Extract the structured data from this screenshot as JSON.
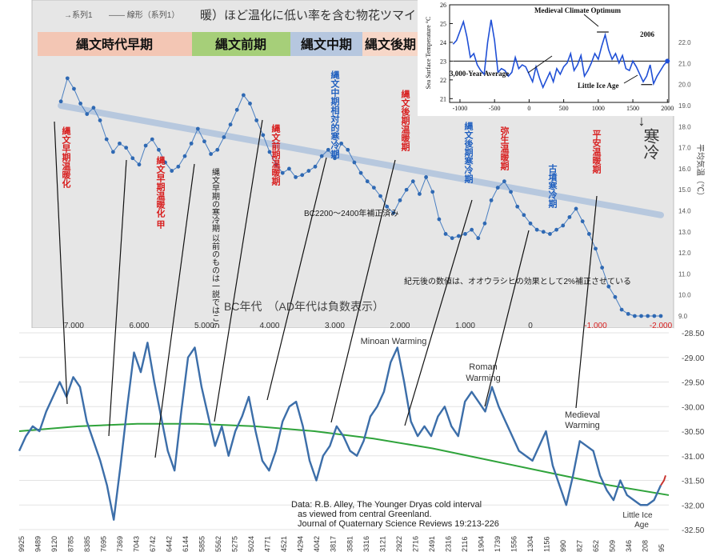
{
  "header_bar": {
    "title": "暖）ほど温化に低い率を含む物花ツマイ",
    "legend": [
      "→系列1",
      "—— 線形（系列1）"
    ],
    "periods": [
      {
        "label": "縄文時代早期",
        "color": "#f3c6b4"
      },
      {
        "label": "縄文前期",
        "color": "#a6cf79"
      },
      {
        "label": "縄文中期",
        "color": "#b6c7df"
      },
      {
        "label": "縄文後期",
        "color": "#f7d7c8"
      }
    ]
  },
  "top_chart": {
    "xlabel": "BC年代　（AD年代は負数表示）",
    "x_ticks": [
      "7,000",
      "6,000",
      "5,000",
      "4,000",
      "3,000",
      "2,000",
      "1,000",
      "0",
      "-1,000",
      "-2,000"
    ],
    "y_ticks_right": [
      "22.0",
      "21.0",
      "20.0",
      "19.0",
      "18.0",
      "17.0",
      "16.0",
      "15.0",
      "14.0",
      "13.0",
      "12.0",
      "11.0",
      "10.0",
      "9.0"
    ],
    "ylabel_right": "平均気温（℃）",
    "cold_label": "寒冷",
    "annotations": [
      {
        "text": "縄文早期温暖化",
        "color": "#d81e1e"
      },
      {
        "text": "縄文早期温暖化 甲",
        "color": "#d81e1e"
      },
      {
        "text": "縄文早期の寒冷期 以前のものは一説ではこの時期の気候変動",
        "color": "#1a1a1a"
      },
      {
        "text": "縄文前期温暖期",
        "color": "#d81e1e"
      },
      {
        "text": "縄文中期相対的寒冷期",
        "color": "#1f5fbf"
      },
      {
        "text": "縄文後期温暖期",
        "color": "#d81e1e"
      },
      {
        "text": "縄文後期寒冷期",
        "color": "#1f5fbf"
      },
      {
        "text": "弥生温暖期",
        "color": "#d81e1e"
      },
      {
        "text": "古墳寒冷期",
        "color": "#1f5fbf"
      },
      {
        "text": "平安温暖期",
        "color": "#d81e1e"
      },
      {
        "text": "BC2200～2400年補正済み",
        "color": "#1a1a1a"
      },
      {
        "text": "紀元後の数値は、オオウラシヒの効果として2%補正させている",
        "color": "#1a1a1a"
      }
    ]
  },
  "inset_chart": {
    "ylabel": "Sea Surface Temperature °C",
    "y_ticks": [
      "26",
      "25",
      "24",
      "23",
      "22",
      "21"
    ],
    "x_ticks": [
      "-1000",
      "-500",
      "0",
      "500",
      "1000",
      "1500",
      "2000"
    ],
    "labels": {
      "optimum": "Medieval Climate Optimum",
      "average": "3,000-Year Average",
      "little_ice_age": "Little Ice Age",
      "year_2006": "2006"
    }
  },
  "bottom_chart": {
    "y_ticks": [
      "-28.50",
      "-29.00",
      "-29.50",
      "-30.00",
      "-30.50",
      "-31.00",
      "-31.50",
      "-32.00",
      "-32.50"
    ],
    "x_ticks": [
      "9925",
      "9489",
      "9120",
      "8785",
      "8385",
      "7695",
      "7369",
      "7043",
      "6742",
      "6442",
      "6144",
      "5855",
      "5562",
      "5275",
      "5024",
      "4771",
      "4521",
      "4294",
      "4042",
      "3817",
      "3581",
      "3316",
      "3121",
      "2922",
      "2716",
      "2491",
      "2316",
      "2116",
      "1904",
      "1739",
      "1556",
      "1304",
      "1156",
      "990",
      "827",
      "652",
      "509",
      "346",
      "208",
      "95"
    ],
    "labels": {
      "minoan": "Minoan Warming",
      "roman_line1": "Roman",
      "roman_line2": "Warming",
      "medieval_line1": "Medieval",
      "medieval_line2": "Warming",
      "lia_line1": "Little Ice",
      "lia_line2": "Age",
      "source_line1": "Data: R.B. Alley,  The Younger Dryas cold interval",
      "source_line2": "as viewed from central Greenland.",
      "source_line3": "Journal of Quaternary  Science Reviews 19:213-226"
    }
  },
  "chart_data": [
    {
      "type": "scatter",
      "title": "",
      "xlabel": "BC年代　（AD年代は負数表示）",
      "ylabel": "平均気温（℃）",
      "xlim": [
        7300,
        -2000
      ],
      "ylim": [
        9,
        22.5
      ],
      "series": [
        {
          "name": "系列1",
          "x": [
            7200,
            7100,
            7000,
            6900,
            6800,
            6700,
            6600,
            6500,
            6400,
            6300,
            6200,
            6100,
            6000,
            5900,
            5800,
            5700,
            5600,
            5500,
            5400,
            5300,
            5200,
            5100,
            5000,
            4900,
            4800,
            4700,
            4600,
            4500,
            4400,
            4300,
            4200,
            4100,
            4000,
            3900,
            3800,
            3700,
            3600,
            3500,
            3400,
            3300,
            3200,
            3100,
            3000,
            2900,
            2800,
            2700,
            2600,
            2500,
            2400,
            2300,
            2200,
            2100,
            2000,
            1900,
            1800,
            1700,
            1600,
            1500,
            1400,
            1300,
            1200,
            1100,
            1000,
            900,
            800,
            700,
            600,
            500,
            400,
            300,
            200,
            100,
            0,
            -100,
            -200,
            -300,
            -400,
            -500,
            -600,
            -700,
            -800,
            -900,
            -1000,
            -1100,
            -1200,
            -1300,
            -1400,
            -1500,
            -1600,
            -1700,
            -1800,
            -1900,
            -2000
          ],
          "values": [
            19.2,
            20.3,
            19.8,
            19.1,
            18.6,
            18.9,
            18.3,
            17.4,
            16.8,
            17.2,
            17.0,
            16.5,
            16.2,
            17.1,
            17.4,
            16.9,
            16.3,
            15.9,
            16.1,
            16.6,
            17.2,
            17.9,
            17.3,
            16.7,
            16.9,
            17.5,
            18.1,
            18.8,
            19.5,
            19.1,
            18.3,
            17.6,
            16.8,
            16.2,
            15.8,
            16.0,
            15.6,
            15.7,
            15.9,
            16.1,
            16.6,
            16.9,
            16.5,
            17.2,
            16.9,
            16.3,
            15.8,
            15.4,
            15.1,
            14.7,
            14.2,
            13.9,
            14.5,
            15.0,
            15.4,
            14.8,
            15.6,
            14.9,
            13.6,
            12.9,
            12.7,
            12.8,
            12.9,
            13.1,
            12.7,
            13.4,
            14.5,
            15.1,
            15.4,
            14.9,
            14.2,
            13.8,
            13.4,
            13.1,
            13.0,
            12.9,
            13.1,
            13.3,
            13.7,
            14.1,
            13.5,
            12.9,
            12.2,
            11.3,
            10.4,
            9.9,
            9.3,
            9.1,
            9.0,
            9.0,
            9.0,
            9.0,
            9.0
          ]
        },
        {
          "name": "線形（系列1）",
          "x": [
            7200,
            -2000
          ],
          "values": [
            19.0,
            13.8
          ]
        }
      ]
    },
    {
      "type": "line",
      "title": "",
      "xlabel": "",
      "ylabel": "Sea Surface Temperature °C",
      "xlim": [
        -1150,
        2020
      ],
      "ylim": [
        20.8,
        26
      ],
      "series": [
        {
          "name": "",
          "x": [
            -1100,
            -1050,
            -1000,
            -950,
            -900,
            -850,
            -800,
            -750,
            -700,
            -650,
            -600,
            -550,
            -500,
            -450,
            -400,
            -350,
            -300,
            -250,
            -200,
            -150,
            -100,
            -50,
            0,
            50,
            100,
            150,
            200,
            250,
            300,
            350,
            400,
            450,
            500,
            550,
            600,
            650,
            700,
            750,
            800,
            850,
            900,
            950,
            1000,
            1050,
            1100,
            1150,
            1200,
            1250,
            1300,
            1350,
            1400,
            1450,
            1500,
            1550,
            1600,
            1650,
            1700,
            1750,
            1800,
            1850,
            1900,
            1950,
            2000
          ],
          "values": [
            23.9,
            24.1,
            24.6,
            25.1,
            24.3,
            23.2,
            23.4,
            22.8,
            22.5,
            22.3,
            24.0,
            25.2,
            24.1,
            22.4,
            22.6,
            22.5,
            22.2,
            22.4,
            23.2,
            22.6,
            22.8,
            22.7,
            22.3,
            21.9,
            22.7,
            22.1,
            21.6,
            22.0,
            22.4,
            21.9,
            22.6,
            22.3,
            22.7,
            22.9,
            23.4,
            22.5,
            22.8,
            23.3,
            22.2,
            22.5,
            22.9,
            23.4,
            23.1,
            23.8,
            24.4,
            23.6,
            23.1,
            23.4,
            22.9,
            23.3,
            22.6,
            22.5,
            23.0,
            22.7,
            22.3,
            21.9,
            22.2,
            22.8,
            21.8,
            22.2,
            22.5,
            22.8,
            23.0
          ]
        },
        {
          "name": "3,000-Year Average",
          "x": [
            -1100,
            2000
          ],
          "values": [
            23.0,
            23.0
          ]
        }
      ]
    },
    {
      "type": "line",
      "title": "",
      "xlabel": "",
      "ylabel": "",
      "ylim": [
        -32.5,
        -28.5
      ],
      "series": [
        {
          "name": "",
          "values": [
            -30.9,
            -30.6,
            -30.4,
            -30.5,
            -30.1,
            -29.8,
            -29.5,
            -29.8,
            -29.4,
            -29.6,
            -30.3,
            -30.7,
            -31.1,
            -31.6,
            -32.3,
            -31.2,
            -30.0,
            -28.9,
            -29.3,
            -28.7,
            -29.5,
            -30.2,
            -30.9,
            -31.3,
            -30.1,
            -29.0,
            -28.8,
            -29.6,
            -30.2,
            -30.8,
            -30.4,
            -31.0,
            -30.5,
            -30.2,
            -29.8,
            -30.5,
            -31.1,
            -31.3,
            -30.9,
            -30.3,
            -30.0,
            -29.9,
            -30.4,
            -31.1,
            -31.5,
            -31.0,
            -30.8,
            -30.4,
            -30.6,
            -30.9,
            -31.0,
            -30.7,
            -30.2,
            -30.0,
            -29.7,
            -29.1,
            -28.8,
            -29.5,
            -30.3,
            -30.6,
            -30.4,
            -30.6,
            -30.2,
            -30.0,
            -30.4,
            -30.6,
            -29.9,
            -29.7,
            -29.9,
            -30.1,
            -29.6,
            -30.0,
            -30.3,
            -30.6,
            -30.9,
            -31.0,
            -31.1,
            -30.8,
            -30.5,
            -31.2,
            -31.6,
            -32.0,
            -31.4,
            -30.7,
            -30.8,
            -30.9,
            -31.4,
            -31.7,
            -31.9,
            -31.5,
            -31.8,
            -31.9,
            -32.0,
            -32.0,
            -31.9,
            -31.6
          ]
        },
        {
          "name": "",
          "values": [
            -30.5,
            -30.4,
            -30.35,
            -30.35,
            -30.4,
            -30.5,
            -30.65,
            -30.85,
            -31.1,
            -31.35,
            -31.6,
            -31.8
          ]
        }
      ]
    }
  ]
}
